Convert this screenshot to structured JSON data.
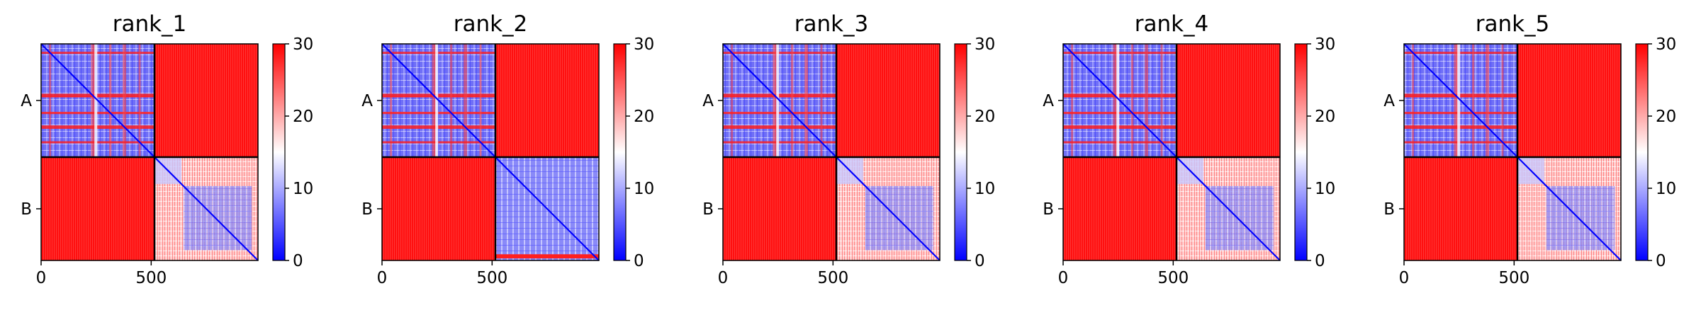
{
  "chart_data": [
    {
      "type": "heatmap",
      "title": "rank_1",
      "chains": [
        "A",
        "B"
      ],
      "chain_boundary": 515,
      "x_ticks": [
        0,
        500
      ],
      "x_range": [
        0,
        985
      ],
      "value_range": [
        0,
        30
      ],
      "colorbar_ticks": [
        0,
        10,
        20,
        30
      ],
      "cmap": [
        "#0000ff",
        "#ffffff",
        "#ff0000"
      ],
      "intra_chain_A_level": "low (mostly blue/white)",
      "intra_chain_B_level": "low near diagonal, mostly white/red off-diagonal",
      "inter_chain_level": 30
    },
    {
      "type": "heatmap",
      "title": "rank_2",
      "chains": [
        "A",
        "B"
      ],
      "chain_boundary": 515,
      "x_ticks": [
        0,
        500
      ],
      "x_range": [
        0,
        985
      ],
      "value_range": [
        0,
        30
      ],
      "colorbar_ticks": [
        0,
        10,
        20,
        30
      ],
      "cmap": [
        "#0000ff",
        "#ffffff",
        "#ff0000"
      ],
      "intra_chain_A_level": "low (mostly blue/white)",
      "intra_chain_B_level": "low (mostly blue/white)",
      "inter_chain_level": 30
    },
    {
      "type": "heatmap",
      "title": "rank_3",
      "chains": [
        "A",
        "B"
      ],
      "chain_boundary": 515,
      "x_ticks": [
        0,
        500
      ],
      "x_range": [
        0,
        985
      ],
      "value_range": [
        0,
        30
      ],
      "colorbar_ticks": [
        0,
        10,
        20,
        30
      ],
      "cmap": [
        "#0000ff",
        "#ffffff",
        "#ff0000"
      ],
      "intra_chain_A_level": "low (mostly blue/white)",
      "intra_chain_B_level": "low near diagonal, mostly white/red off-diagonal",
      "inter_chain_level": 30
    },
    {
      "type": "heatmap",
      "title": "rank_4",
      "chains": [
        "A",
        "B"
      ],
      "chain_boundary": 515,
      "x_ticks": [
        0,
        500
      ],
      "x_range": [
        0,
        985
      ],
      "value_range": [
        0,
        30
      ],
      "colorbar_ticks": [
        0,
        10,
        20,
        30
      ],
      "cmap": [
        "#0000ff",
        "#ffffff",
        "#ff0000"
      ],
      "intra_chain_A_level": "low (mostly blue/white)",
      "intra_chain_B_level": "low near diagonal, mostly white/red off-diagonal",
      "inter_chain_level": 30
    },
    {
      "type": "heatmap",
      "title": "rank_5",
      "chains": [
        "A",
        "B"
      ],
      "chain_boundary": 515,
      "x_ticks": [
        0,
        500
      ],
      "x_range": [
        0,
        985
      ],
      "value_range": [
        0,
        30
      ],
      "colorbar_ticks": [
        0,
        10,
        20,
        30
      ],
      "cmap": [
        "#0000ff",
        "#ffffff",
        "#ff0000"
      ],
      "intra_chain_A_level": "low (mostly blue/white)",
      "intra_chain_B_level": "low near diagonal, mostly white/red off-diagonal",
      "inter_chain_level": 30
    }
  ]
}
